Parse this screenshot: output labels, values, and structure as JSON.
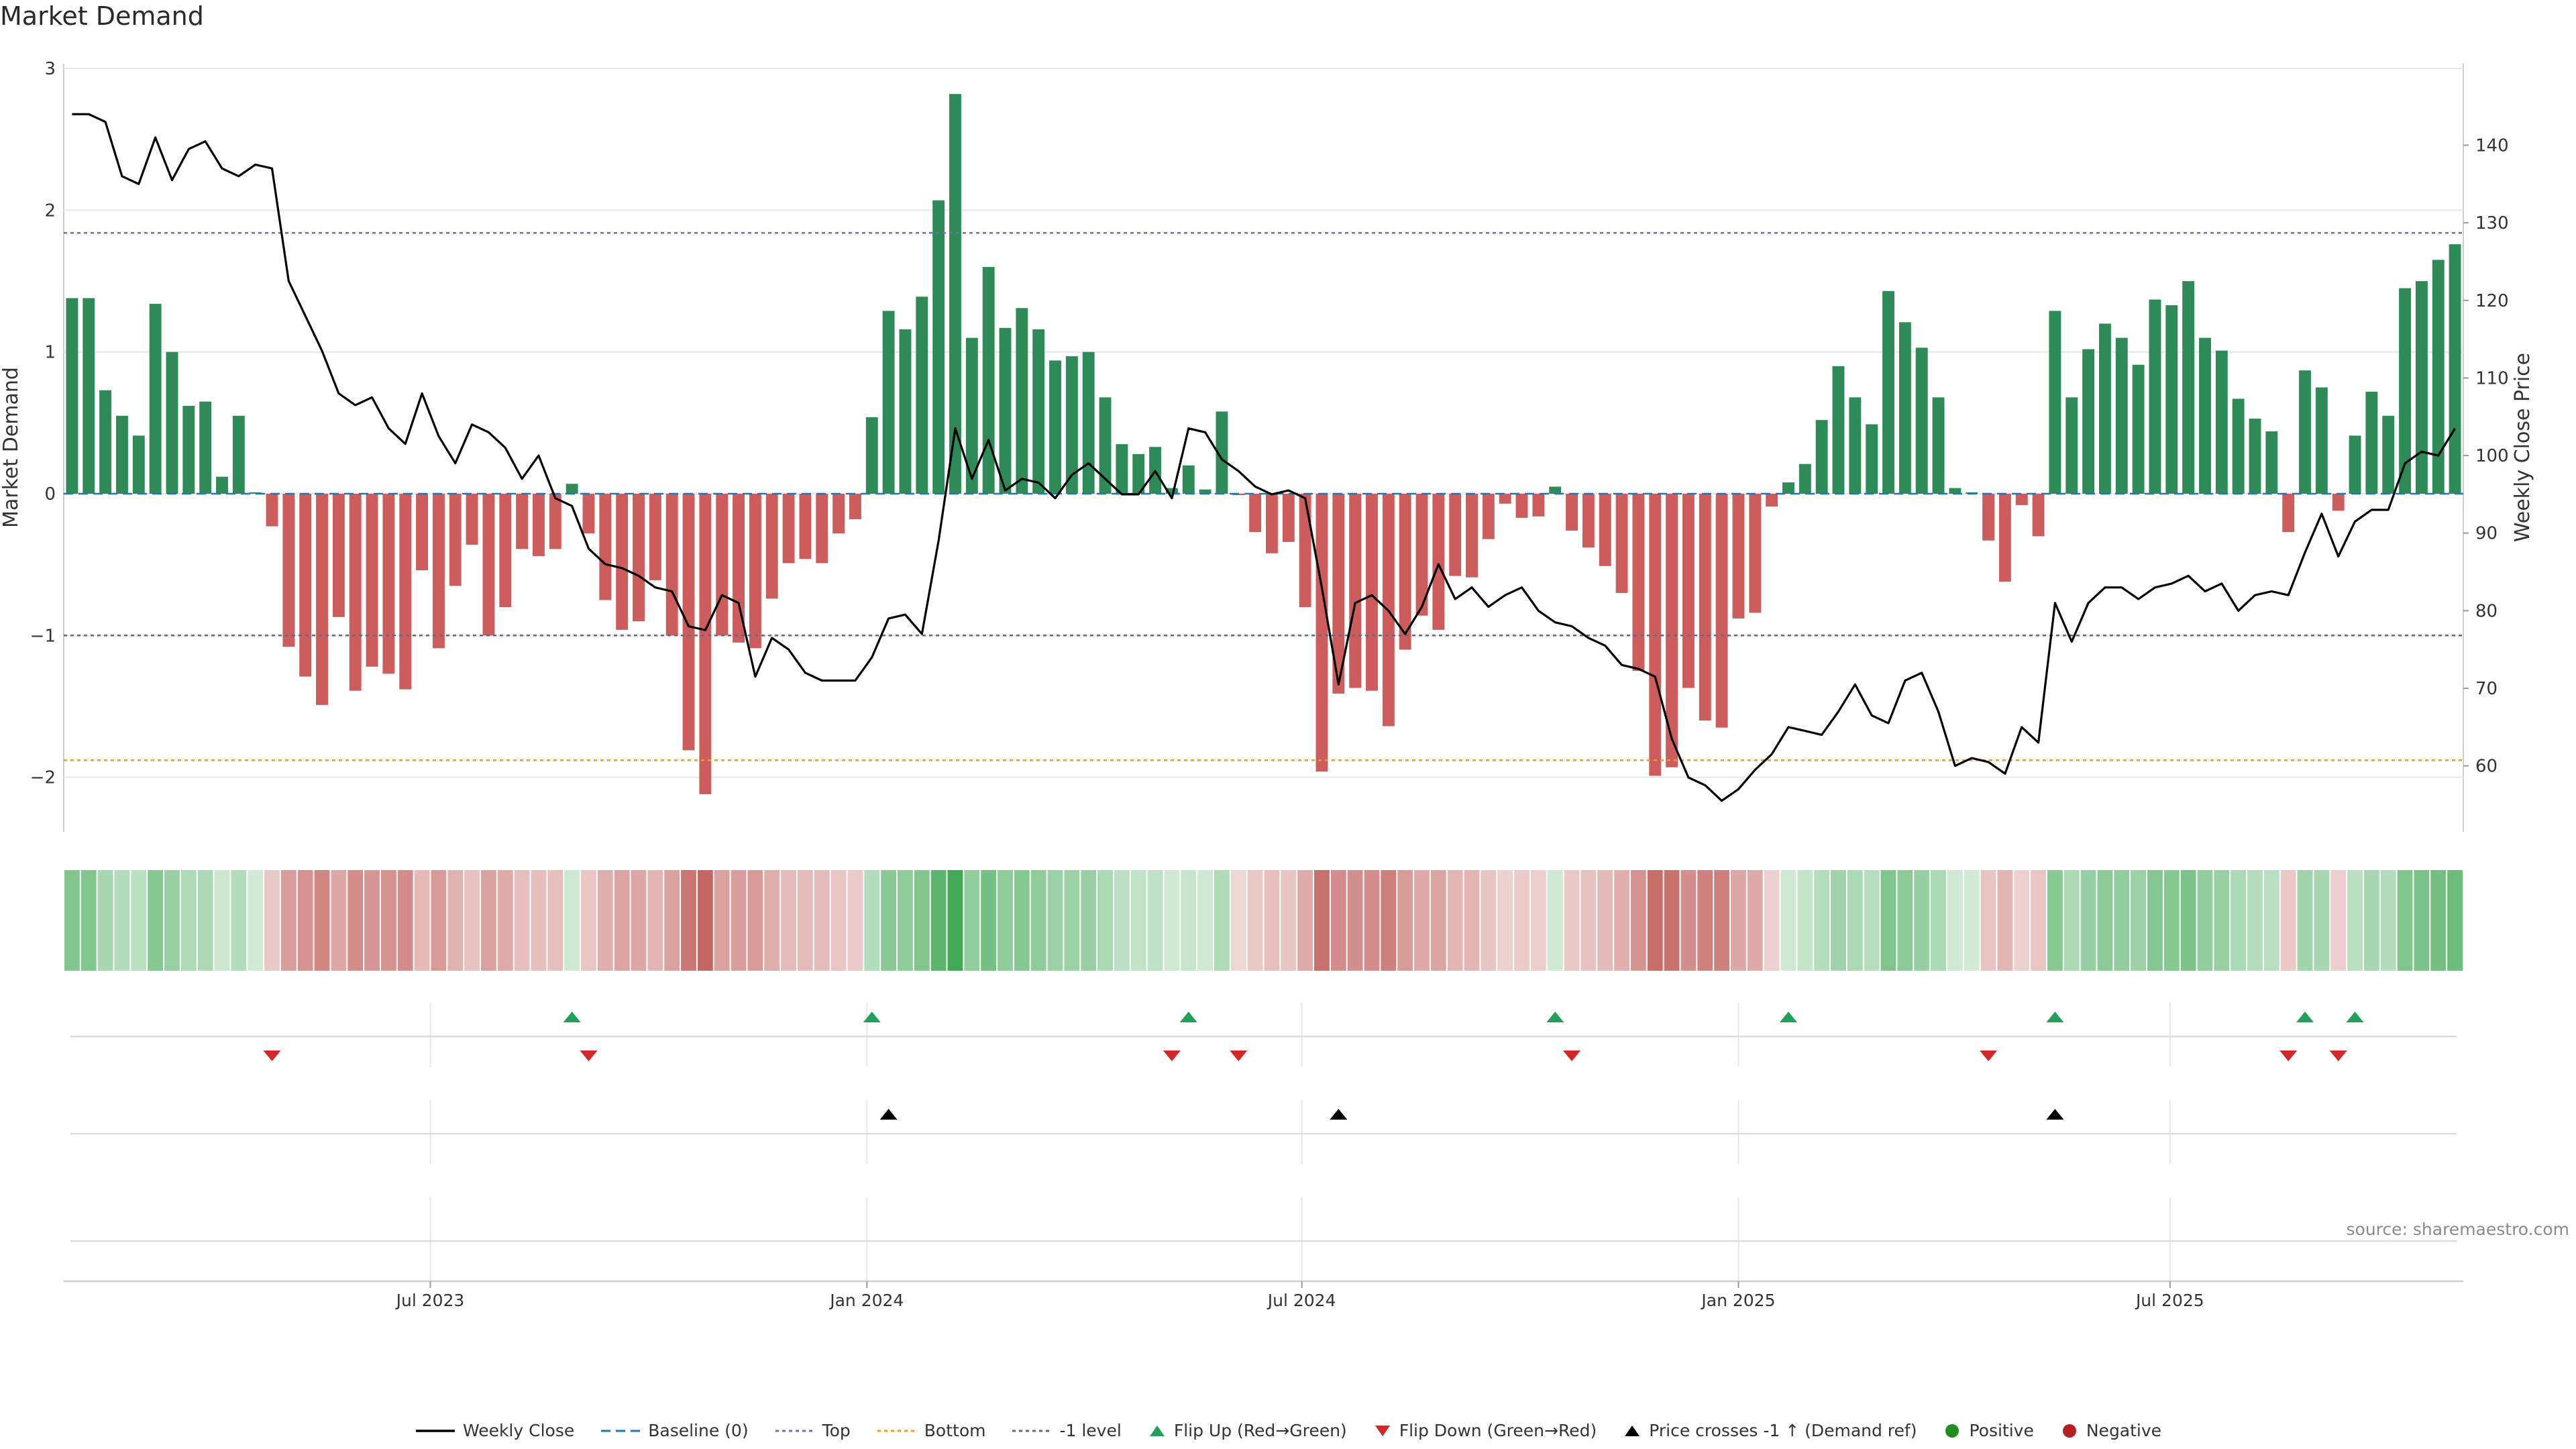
{
  "title": "Market Demand",
  "source": "source: sharemaestro.com",
  "colors": {
    "positive_bar": "#2e8b57",
    "negative_bar": "#cd5c5c",
    "price_line": "#000000",
    "top_line": "#7b6bb0",
    "bottom_line": "#e8a020",
    "minus1_line": "#666688",
    "baseline": "#1f77b4",
    "flip_up": "#22a05a",
    "flip_down": "#d62728",
    "cross_up": "#000000",
    "positive_dot": "#228b22",
    "negative_dot": "#b22222",
    "grid": "#e6e6e6",
    "axis_text": "#333333"
  },
  "chart_data": {
    "type": "bar",
    "title": "Market Demand",
    "ylabel": "Market Demand",
    "y2label": "Weekly Close Price",
    "ylim": [
      -2.4,
      3.0
    ],
    "y2lim": [
      51.5,
      150.5
    ],
    "yticks": [
      -2,
      -1,
      0,
      1,
      2,
      3
    ],
    "y2ticks": [
      60,
      70,
      80,
      90,
      100,
      110,
      120,
      130,
      140
    ],
    "reference_levels": {
      "top": 1.84,
      "bottom": -1.88,
      "minus1": -1.0,
      "baseline": 0
    },
    "x_tick_labels": [
      {
        "label": "Jul 2023",
        "week": 22
      },
      {
        "label": "Jan 2024",
        "week": 48.2
      },
      {
        "label": "Jul 2024",
        "week": 74.3
      },
      {
        "label": "Jan 2025",
        "week": 100.5
      },
      {
        "label": "Jul 2025",
        "week": 126.4
      }
    ],
    "week_count": 144,
    "demand": [
      1.38,
      1.38,
      0.73,
      0.55,
      0.41,
      1.34,
      1.0,
      0.62,
      0.65,
      0.12,
      0.55,
      0.01,
      -0.23,
      -1.08,
      -1.29,
      -1.49,
      -0.87,
      -1.39,
      -1.22,
      -1.27,
      -1.38,
      -0.54,
      -1.09,
      -0.65,
      -0.36,
      -1.0,
      -0.8,
      -0.39,
      -0.44,
      -0.39,
      0.07,
      -0.28,
      -0.75,
      -0.96,
      -0.9,
      -0.61,
      -1.0,
      -1.81,
      -2.12,
      -1.0,
      -1.05,
      -1.09,
      -0.74,
      -0.49,
      -0.46,
      -0.49,
      -0.28,
      -0.18,
      0.54,
      1.29,
      1.16,
      1.39,
      2.07,
      2.82,
      1.1,
      1.6,
      1.17,
      1.31,
      1.16,
      0.94,
      0.97,
      1.0,
      0.68,
      0.35,
      0.28,
      0.33,
      0.04,
      0.2,
      0.03,
      0.58,
      -0.01,
      -0.27,
      -0.42,
      -0.34,
      -0.8,
      -1.96,
      -1.41,
      -1.37,
      -1.39,
      -1.64,
      -1.1,
      -0.86,
      -0.96,
      -0.58,
      -0.59,
      -0.32,
      -0.07,
      -0.17,
      -0.16,
      0.05,
      -0.26,
      -0.38,
      -0.51,
      -0.7,
      -1.25,
      -1.99,
      -1.93,
      -1.37,
      -1.6,
      -1.65,
      -0.88,
      -0.84,
      -0.09,
      0.08,
      0.21,
      0.52,
      0.9,
      0.68,
      0.49,
      1.43,
      1.21,
      1.03,
      0.68,
      0.04,
      0.01,
      -0.33,
      -0.62,
      -0.08,
      -0.3,
      1.29,
      0.68,
      1.02,
      1.2,
      1.1,
      0.91,
      1.37,
      1.33,
      1.5,
      1.1,
      1.01,
      0.67,
      0.53,
      0.44,
      -0.27,
      0.87,
      0.75,
      -0.12,
      0.41,
      0.72,
      0.55,
      1.45,
      1.5,
      1.65,
      1.76
    ],
    "series": [
      {
        "name": "Weekly Close",
        "values": [
          144,
          144,
          143,
          136,
          135,
          141,
          135.5,
          139.5,
          140.5,
          137,
          136,
          137.5,
          137,
          122.5,
          118,
          113.5,
          108,
          106.5,
          107.5,
          103.5,
          101.5,
          108,
          102.5,
          99,
          104,
          103,
          101,
          97,
          100,
          94.5,
          93.5,
          88,
          86,
          85.5,
          84.5,
          83,
          82.5,
          78,
          77.5,
          82,
          81,
          71.5,
          76.5,
          75,
          72,
          71,
          71,
          71,
          74,
          79,
          79.5,
          77,
          89,
          103.5,
          97,
          102,
          95.5,
          97,
          96.5,
          94.5,
          97.5,
          99,
          97,
          95,
          95,
          98,
          94.5,
          103.5,
          103,
          99.5,
          98,
          96,
          95,
          95.5,
          94.5,
          83,
          70.5,
          81,
          82,
          80,
          77,
          80.5,
          86,
          81.5,
          83,
          80.5,
          82,
          83,
          80,
          78.5,
          78,
          76.5,
          75.5,
          73,
          72.5,
          71.5,
          63.5,
          58.5,
          57.5,
          55.5,
          57,
          59.5,
          61.5,
          65,
          64.5,
          64,
          67,
          70.5,
          66.5,
          65.5,
          71,
          72,
          67,
          60,
          61,
          60.5,
          59,
          65,
          63,
          81,
          76,
          81,
          83,
          83,
          81.5,
          83,
          83.5,
          84.5,
          82.5,
          83.5,
          80,
          82,
          82.5,
          82,
          87.5,
          92.5,
          87,
          91.5,
          93,
          93,
          99,
          100.5,
          100,
          103.5
        ]
      }
    ],
    "flip_up_weeks": [
      30,
      48,
      67,
      89,
      103,
      119,
      134,
      137
    ],
    "flip_down_weeks": [
      12,
      31,
      66,
      70,
      90,
      115,
      133,
      136
    ],
    "price_cross_up_weeks": [
      49,
      76,
      119
    ]
  },
  "legend": [
    {
      "kind": "line-solid",
      "label": "Weekly Close",
      "color": "#000000"
    },
    {
      "kind": "line-dashed",
      "label": "Baseline (0)",
      "color": "#1f77b4"
    },
    {
      "kind": "line-dotted",
      "label": "Top",
      "color": "#7b6bb0"
    },
    {
      "kind": "line-dotted",
      "label": "Bottom",
      "color": "#e8a020"
    },
    {
      "kind": "line-dotted",
      "label": "-1 level",
      "color": "#666688"
    },
    {
      "kind": "tri-up",
      "label": "Flip Up (Red→Green)",
      "color": "#22a05a"
    },
    {
      "kind": "tri-down",
      "label": "Flip Down (Green→Red)",
      "color": "#d62728"
    },
    {
      "kind": "tri-up",
      "label": "Price crosses -1 ↑ (Demand ref)",
      "color": "#000000"
    },
    {
      "kind": "dot",
      "label": "Positive",
      "color": "#228b22"
    },
    {
      "kind": "dot",
      "label": "Negative",
      "color": "#b22222"
    }
  ]
}
